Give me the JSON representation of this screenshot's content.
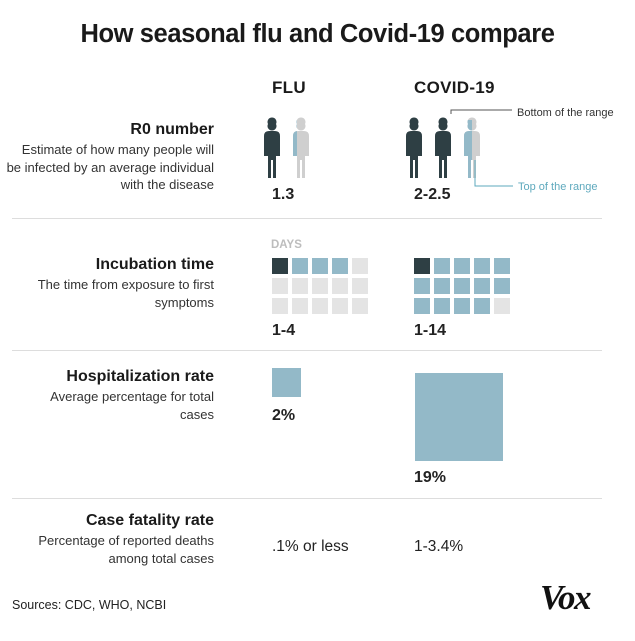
{
  "title": "How seasonal flu and Covid-19 compare",
  "columns": {
    "flu": "FLU",
    "covid": "COVID-19"
  },
  "rows": {
    "r0": {
      "title": "R0 number",
      "description": "Estimate of how many people will be infected by an average individual with the disease",
      "flu_value": "1.3",
      "covid_value": "2-2.5"
    },
    "incubation": {
      "title": "Incubation time",
      "description": "The time from exposure to first symptoms",
      "unit_label": "DAYS",
      "flu_value": "1-4",
      "covid_value": "1-14"
    },
    "hospitalization": {
      "title": "Hospitalization rate",
      "description": "Average percentage for total cases",
      "flu_value": "2%",
      "covid_value": "19%"
    },
    "fatality": {
      "title": "Case fatality rate",
      "description": "Percentage of reported deaths among total cases",
      "flu_value": ".1% or less",
      "covid_value": "1-3.4%"
    }
  },
  "annotations": {
    "bottom_range": "Bottom of the range",
    "top_range": "Top of the range"
  },
  "sources": "Sources: CDC, WHO,  NCBI",
  "logo": "Vox",
  "colors": {
    "dark": "#2e3f44",
    "light_blue": "#93b9c8",
    "grey": "#e4e4e4",
    "teal_line": "#5ea9bd"
  },
  "chart_data": {
    "type": "table",
    "metrics": [
      "R0 number",
      "Incubation time",
      "Hospitalization rate",
      "Case fatality rate"
    ],
    "series": [
      {
        "name": "FLU",
        "values": [
          "1.3",
          "1-4",
          "2%",
          ".1% or less"
        ]
      },
      {
        "name": "COVID-19",
        "values": [
          "2-2.5",
          "1-14",
          "19%",
          "1-3.4%"
        ]
      }
    ],
    "r0": {
      "flu": [
        1,
        1.3
      ],
      "covid": [
        2,
        2.5
      ]
    },
    "incubation_days": {
      "flu": [
        1,
        4
      ],
      "covid": [
        1,
        14
      ],
      "grid_cells": 15
    },
    "hospitalization_pct": {
      "flu": 2,
      "covid": 19
    }
  }
}
